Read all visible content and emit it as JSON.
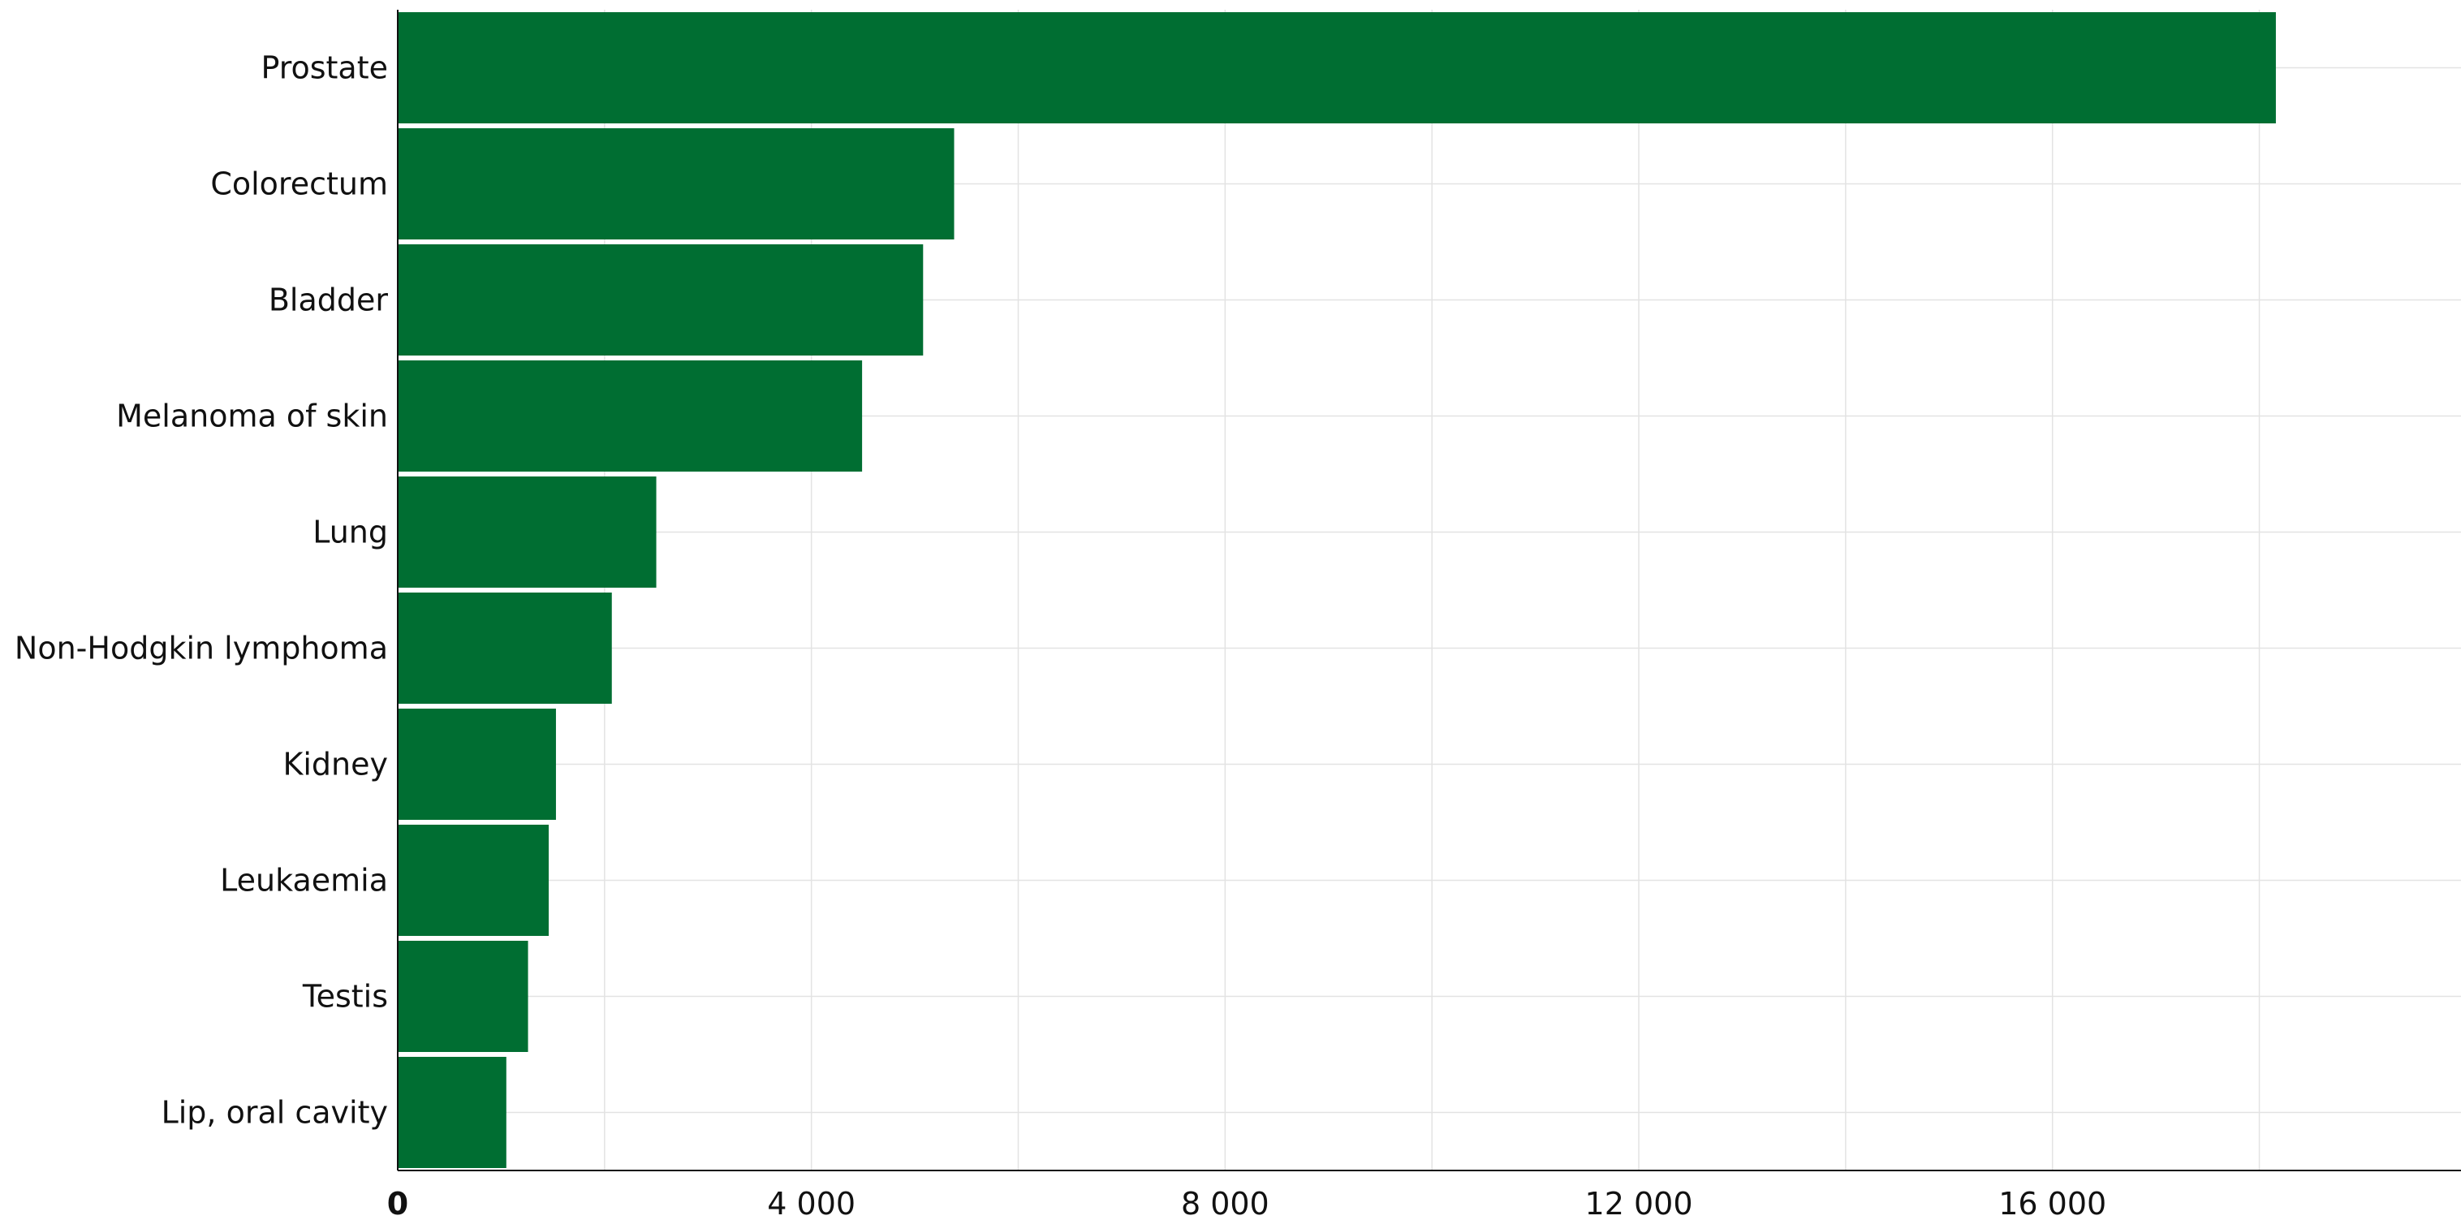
{
  "chart_data": {
    "type": "bar",
    "orientation": "horizontal",
    "categories": [
      "Prostate",
      "Colorectum",
      "Bladder",
      "Melanoma of skin",
      "Lung",
      "Non-Hodgkin lymphoma",
      "Kidney",
      "Leukaemia",
      "Testis",
      "Lip, oral cavity"
    ],
    "values": [
      18160,
      5380,
      5080,
      4490,
      2500,
      2070,
      1530,
      1460,
      1260,
      1050
    ],
    "xlim": [
      0,
      19950
    ],
    "xticks": [
      0,
      4000,
      8000,
      12000,
      16000
    ],
    "xtick_labels": [
      "0",
      "4 000",
      "8 000",
      "12 000",
      "16 000"
    ],
    "grid": true,
    "bar_color": "#006E32"
  }
}
